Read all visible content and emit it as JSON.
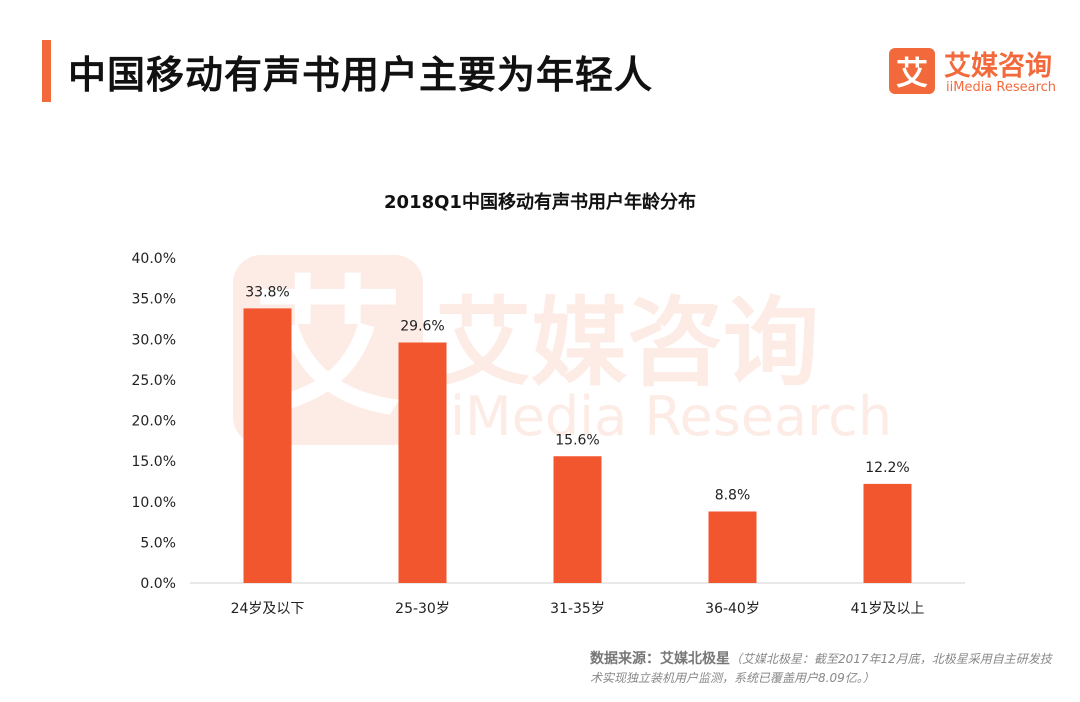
{
  "header": {
    "title": "中国移动有声书用户主要为年轻人"
  },
  "logo": {
    "mark": "艾",
    "cn": "艾媒咨询",
    "en": "iiMedia Research"
  },
  "colors": {
    "accent": "#f26a3c",
    "bar": "#f2562f"
  },
  "chart_data": {
    "type": "bar",
    "title": "2018Q1中国移动有声书用户年龄分布",
    "categories": [
      "24岁及以下",
      "25-30岁",
      "31-35岁",
      "36-40岁",
      "41岁及以上"
    ],
    "values": [
      33.8,
      29.6,
      15.6,
      8.8,
      12.2
    ],
    "value_labels": [
      "33.8%",
      "29.6%",
      "15.6%",
      "8.8%",
      "12.2%"
    ],
    "y_ticks": [
      "0.0%",
      "5.0%",
      "10.0%",
      "15.0%",
      "20.0%",
      "25.0%",
      "30.0%",
      "35.0%",
      "40.0%"
    ],
    "ylim": [
      0,
      40
    ],
    "xlabel": "",
    "ylabel": "",
    "grid": false
  },
  "source": {
    "label": "数据来源：艾媒北极星",
    "note": "（艾媒北极星：截至2017年12月底，北极星采用自主研发技术实现独立装机用户监测，系统已覆盖用户8.09亿。）"
  }
}
